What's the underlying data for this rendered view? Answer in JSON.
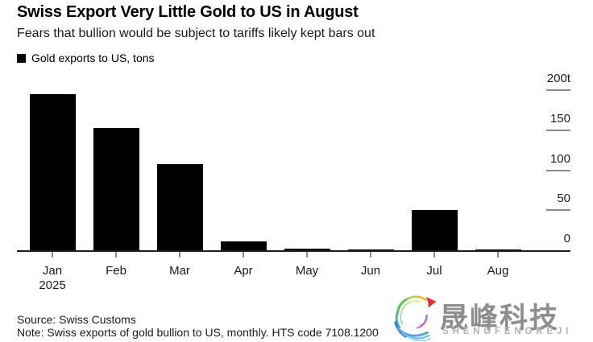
{
  "header": {
    "title": "Swiss Export Very Little Gold to US in August",
    "subtitle": "Fears that bullion would be subject to tariffs likely kept bars out",
    "legend_label": "Gold exports to US, tons"
  },
  "chart_data": {
    "type": "bar",
    "title": "Gold exports to US, tons",
    "categories": [
      "Jan",
      "Feb",
      "Mar",
      "Apr",
      "May",
      "Jun",
      "Jul",
      "Aug"
    ],
    "x_year_label": "2025",
    "values": [
      195,
      153,
      108,
      11,
      2,
      0.3,
      50,
      0.3
    ],
    "xlabel": "",
    "ylabel": "tons",
    "ylim": [
      0,
      200
    ],
    "y_ticks": [
      {
        "label": "200t",
        "value": 200
      },
      {
        "label": "150",
        "value": 150
      },
      {
        "label": "100",
        "value": 100
      },
      {
        "label": "50",
        "value": 50
      },
      {
        "label": "0",
        "value": 0
      }
    ],
    "grid": "off",
    "axis_side": "right",
    "legend_position": "top-left",
    "bar_color": "#000000",
    "axis_line_color": "#1f1f1f",
    "tick_color": "#8a8a8a",
    "label_color": "#1a1a1a"
  },
  "footer": {
    "source": "Source: Swiss Customs",
    "note": "Note: Swiss exports of gold bullion to US, monthly. HTS code 7108.1200"
  },
  "watermark": {
    "name_cn": "晟峰科技",
    "name_en": "SHENGFENGKEJI",
    "cn_color": "#8d8d8d",
    "en_color": "#b3b3b3",
    "logo_colors": [
      "#3dbd9a",
      "#58c24c",
      "#a8d145",
      "#ffb300",
      "#f5222d",
      "#b06ad6",
      "#d657c8",
      "#4fa3e3",
      "#6ec6f0",
      "#a3d8f5",
      "#2f7fd1"
    ]
  }
}
